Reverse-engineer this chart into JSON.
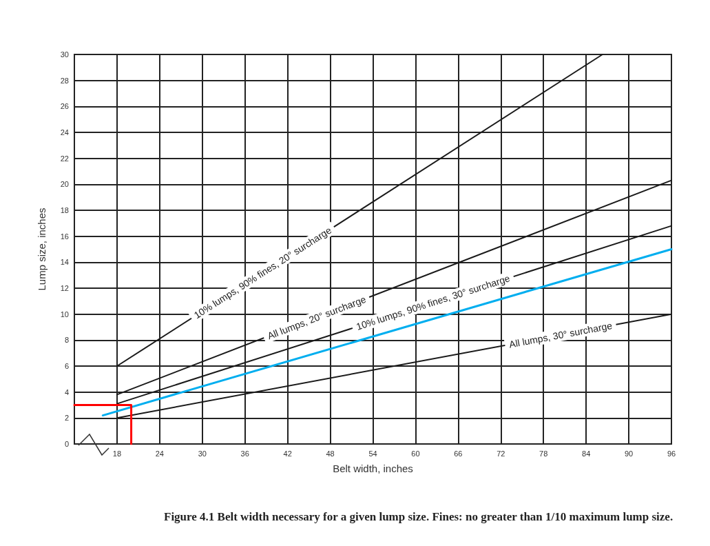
{
  "chart_data": {
    "type": "line",
    "title": "Figure 4.1 Belt width necessary for a given lump size. Fines: no greater than 1/10 maximum lump size.",
    "xlabel": "Belt width, inches",
    "ylabel": "Lump size, inches",
    "xlim": [
      12,
      96
    ],
    "xticks": [
      18,
      24,
      30,
      36,
      42,
      48,
      54,
      60,
      66,
      72,
      78,
      84,
      90,
      96
    ],
    "ylim": [
      0,
      30
    ],
    "yticks": [
      0,
      2,
      4,
      6,
      8,
      10,
      12,
      14,
      16,
      18,
      20,
      22,
      24,
      26,
      28,
      30
    ],
    "grid": true,
    "legend": false,
    "marker": "none",
    "line_style": "solid",
    "series": [
      {
        "name": "10% lumps, 90% fines, 20° surcharge",
        "color": "#1a1a1a",
        "x": [
          18,
          86.3
        ],
        "values": [
          6,
          30
        ]
      },
      {
        "name": "All lumps, 20° surcharge",
        "color": "#1a1a1a",
        "x": [
          18,
          96
        ],
        "values": [
          3.8,
          20.3
        ]
      },
      {
        "name": "10% lumps, 90% fines, 30° surcharge",
        "color": "#1a1a1a",
        "x": [
          18,
          96
        ],
        "values": [
          3.1,
          16.8
        ]
      },
      {
        "color": "#00aeef",
        "x": [
          16,
          96
        ],
        "values": [
          2.2,
          15
        ]
      },
      {
        "name": "All lumps, 30° surcharge",
        "color": "#1a1a1a",
        "x": [
          18,
          96
        ],
        "values": [
          2,
          10
        ]
      },
      {
        "color": "#ff0000",
        "x": [
          12,
          20,
          20
        ],
        "values": [
          3,
          3,
          0
        ]
      }
    ]
  }
}
